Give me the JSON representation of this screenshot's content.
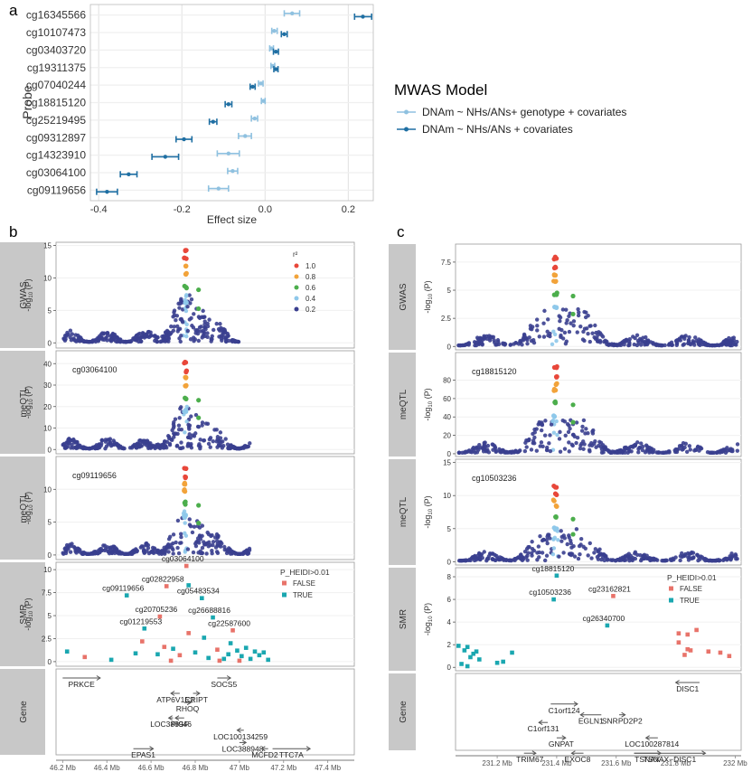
{
  "chart_data": [
    {
      "panel": "a",
      "type": "dot-errorbar",
      "ylabel": "Probe",
      "xlabel": "Effect size",
      "xlim": [
        -0.42,
        0.26
      ],
      "xticks": [
        "-0.4",
        "-0.2",
        "0.0",
        "0.2"
      ],
      "xtick_values": [
        -0.4,
        -0.2,
        0.0,
        0.2
      ],
      "probes": [
        "cg16345566",
        "cg10107473",
        "cg03403720",
        "cg19311375",
        "cg07040244",
        "cg18815120",
        "cg25219495",
        "cg09312897",
        "cg14323910",
        "cg03064100",
        "cg09119656"
      ],
      "legend_title": "MWAS Model",
      "series": [
        {
          "name": "DNAm ~ NHs/ANs+ genotype + covariates",
          "color": "#8fc1e0",
          "est": [
            0.065,
            0.022,
            0.015,
            0.018,
            -0.01,
            -0.004,
            -0.025,
            -0.048,
            -0.088,
            -0.078,
            -0.112
          ],
          "lo": [
            0.046,
            0.016,
            0.011,
            0.014,
            -0.016,
            -0.009,
            -0.033,
            -0.064,
            -0.115,
            -0.09,
            -0.136
          ],
          "hi": [
            0.083,
            0.029,
            0.02,
            0.023,
            -0.005,
            0.0,
            -0.018,
            -0.033,
            -0.062,
            -0.066,
            -0.088
          ]
        },
        {
          "name": "DNAm ~ NHs/ANs + covariates",
          "color": "#1f6fa3",
          "est": [
            0.235,
            0.046,
            0.026,
            0.026,
            -0.03,
            -0.088,
            -0.125,
            -0.195,
            -0.24,
            -0.328,
            -0.38
          ],
          "lo": [
            0.215,
            0.039,
            0.02,
            0.021,
            -0.036,
            -0.096,
            -0.134,
            -0.214,
            -0.272,
            -0.348,
            -0.405
          ],
          "hi": [
            0.256,
            0.053,
            0.032,
            0.031,
            -0.024,
            -0.08,
            -0.116,
            -0.176,
            -0.208,
            -0.308,
            -0.355
          ]
        }
      ]
    },
    {
      "panel": "b",
      "type": "regional-association",
      "x_ticks": [
        "46.2 Mb",
        "46.4 Mb",
        "46.6 Mb",
        "46.8 Mb",
        "47 Mb",
        "47.2 Mb",
        "47.4 Mb"
      ],
      "xlim": [
        46.17,
        47.52
      ],
      "tracks": [
        {
          "strip": "GWAS",
          "ylabel": "-log10 (P)",
          "yticks": [
            0,
            5,
            10,
            15
          ],
          "ylim": [
            -0.8,
            15.5
          ],
          "legend_title": "r²",
          "legend": [
            {
              "label": "1.0",
              "color": "#e8473a"
            },
            {
              "label": "0.8",
              "color": "#f2a33a"
            },
            {
              "label": "0.6",
              "color": "#4cae4c"
            },
            {
              "label": "0.4",
              "color": "#8ec8ea"
            },
            {
              "label": "0.2",
              "color": "#3a3f8f"
            }
          ],
          "peak_pos": 46.755,
          "peak": 14.6,
          "extent": [
            46.2,
            47.0
          ]
        },
        {
          "strip": "meQTL",
          "probe": "cg03064100",
          "ylabel": "-log10 (P)",
          "yticks": [
            0,
            10,
            20,
            30,
            40
          ],
          "ylim": [
            -2,
            46
          ],
          "peak_pos": 46.755,
          "peak": 41,
          "extent": [
            46.2,
            47.05
          ]
        },
        {
          "strip": "meQTL",
          "probe": "cg09119656",
          "ylabel": "-log10 (P)",
          "yticks": [
            0,
            5,
            10
          ],
          "ylim": [
            -0.7,
            15
          ],
          "peak_pos": 46.755,
          "peak": 13.5,
          "extent": [
            46.2,
            47.05
          ]
        },
        {
          "strip": "SMR",
          "ylabel": "-log10 (P)",
          "yticks": [
            0.0,
            2.5,
            5.0,
            7.5,
            10.0
          ],
          "ylim": [
            -0.5,
            10.8
          ],
          "legend_title": "P_HEIDI>0.01",
          "legend": [
            {
              "label": "FALSE",
              "color": "#e8736a"
            },
            {
              "label": "TRUE",
              "color": "#1aa7b0"
            }
          ],
          "points": [
            {
              "x": 46.76,
              "y": 10.4,
              "h": false,
              "label": "cg03064100"
            },
            {
              "x": 46.67,
              "y": 8.2,
              "h": false,
              "label": "cg02822958"
            },
            {
              "x": 46.77,
              "y": 8.3,
              "h": true
            },
            {
              "x": 46.49,
              "y": 7.2,
              "h": true,
              "label": "cg09119656"
            },
            {
              "x": 46.83,
              "y": 6.9,
              "h": true,
              "label": "cg05483534"
            },
            {
              "x": 46.64,
              "y": 4.9,
              "h": false,
              "label": "cg20705236"
            },
            {
              "x": 46.88,
              "y": 4.8,
              "h": true,
              "label": "cg26688816"
            },
            {
              "x": 46.57,
              "y": 3.6,
              "h": true,
              "label": "cg01219553"
            },
            {
              "x": 46.97,
              "y": 3.4,
              "h": false,
              "label": "cg22587600"
            },
            {
              "x": 46.77,
              "y": 3.1,
              "h": false
            },
            {
              "x": 46.84,
              "y": 2.6,
              "h": true
            },
            {
              "x": 46.56,
              "y": 2.2,
              "h": false
            },
            {
              "x": 46.66,
              "y": 1.6,
              "h": false
            },
            {
              "x": 46.22,
              "y": 1.1,
              "h": true
            },
            {
              "x": 46.3,
              "y": 0.5,
              "h": false
            },
            {
              "x": 46.42,
              "y": 0.2,
              "h": true
            },
            {
              "x": 46.53,
              "y": 0.9,
              "h": true
            },
            {
              "x": 46.63,
              "y": 0.8,
              "h": true
            },
            {
              "x": 46.7,
              "y": 1.4,
              "h": true
            },
            {
              "x": 46.73,
              "y": 0.7,
              "h": false
            },
            {
              "x": 46.8,
              "y": 1.0,
              "h": true
            },
            {
              "x": 46.86,
              "y": 0.4,
              "h": true
            },
            {
              "x": 46.9,
              "y": 1.3,
              "h": false
            },
            {
              "x": 46.93,
              "y": 0.3,
              "h": true
            },
            {
              "x": 46.95,
              "y": 0.8,
              "h": true
            },
            {
              "x": 46.96,
              "y": 2.0,
              "h": true
            },
            {
              "x": 46.99,
              "y": 1.2,
              "h": true
            },
            {
              "x": 47.01,
              "y": 0.6,
              "h": true
            },
            {
              "x": 47.03,
              "y": 1.5,
              "h": true
            },
            {
              "x": 47.05,
              "y": 0.3,
              "h": true
            },
            {
              "x": 47.07,
              "y": 1.1,
              "h": true
            },
            {
              "x": 47.09,
              "y": 0.7,
              "h": true
            },
            {
              "x": 47.11,
              "y": 1.0,
              "h": true
            },
            {
              "x": 47.13,
              "y": 0.2,
              "h": true
            },
            {
              "x": 47.0,
              "y": 0.1,
              "h": false
            },
            {
              "x": 46.91,
              "y": 0.1,
              "h": false
            },
            {
              "x": 46.69,
              "y": 0.1,
              "h": false
            }
          ]
        },
        {
          "strip": "Gene",
          "genes": [
            {
              "name": "PRKCE",
              "start": 46.2,
              "end": 46.37,
              "row": 0,
              "dir": ">"
            },
            {
              "name": "SOCS5",
              "start": 46.9,
              "end": 46.96,
              "row": 0,
              "dir": ">"
            },
            {
              "name": "ATP6V1E2",
              "start": 46.69,
              "end": 46.73,
              "row": 1,
              "dir": "<"
            },
            {
              "name": "CRIPT",
              "start": 46.79,
              "end": 46.82,
              "row": 1,
              "dir": ">"
            },
            {
              "name": "RHOQ",
              "start": 46.75,
              "end": 46.78,
              "row": 1.6,
              "dir": ">"
            },
            {
              "name": "LOC388946",
              "start": 46.68,
              "end": 46.7,
              "row": 2.6,
              "dir": "<"
            },
            {
              "name": "PIGF",
              "start": 46.71,
              "end": 46.75,
              "row": 2.6,
              "dir": "<"
            },
            {
              "name": "LOC100134259",
              "start": 46.99,
              "end": 47.02,
              "row": 3.4,
              "dir": "<"
            },
            {
              "name": "LOC388948",
              "start": 47.0,
              "end": 47.03,
              "row": 4.2,
              "dir": ">"
            },
            {
              "name": "EPAS1",
              "start": 46.52,
              "end": 46.61,
              "row": 4.6,
              "dir": ">"
            },
            {
              "name": "MCFD2",
              "start": 47.1,
              "end": 47.13,
              "row": 4.6,
              "dir": "<"
            },
            {
              "name": "TTC7A",
              "start": 47.15,
              "end": 47.32,
              "row": 4.6,
              "dir": ">"
            }
          ]
        }
      ]
    },
    {
      "panel": "c",
      "type": "regional-association",
      "x_ticks": [
        "231.2 Mb",
        "231.4 Mb",
        "231.6 Mb",
        "231.8 Mb",
        "232 Mb"
      ],
      "xlim": [
        231.06,
        232.02
      ],
      "tracks": [
        {
          "strip": "GWAS",
          "ylabel": "-log10 (P)",
          "yticks": [
            0.0,
            2.5,
            5.0,
            7.5
          ],
          "ylim": [
            -0.3,
            9.1
          ],
          "peak_pos": 231.395,
          "peak": 8.0
        },
        {
          "strip": "meQTL",
          "probe": "cg18815120",
          "ylabel": "-log10 (P)",
          "yticks": [
            0,
            20,
            40,
            60,
            80
          ],
          "ylim": [
            -3,
            110
          ],
          "peak_pos": 231.395,
          "peak": 95
        },
        {
          "strip": "meQTL",
          "probe": "cg10503236",
          "ylabel": "-log10 (P)",
          "yticks": [
            0,
            5,
            10,
            15
          ],
          "ylim": [
            -0.5,
            15.5
          ],
          "peak_pos": 231.395,
          "peak": 11.5
        },
        {
          "strip": "SMR",
          "ylabel": "-log10 (P)",
          "yticks": [
            0,
            2,
            4,
            6,
            8
          ],
          "ylim": [
            -0.3,
            8.8
          ],
          "legend_title": "P_HEIDI>0.01",
          "legend": [
            {
              "label": "FALSE",
              "color": "#e8736a"
            },
            {
              "label": "TRUE",
              "color": "#1aa7b0"
            }
          ],
          "points": [
            {
              "x": 231.4,
              "y": 8.1,
              "h": true,
              "label": "cg18815120"
            },
            {
              "x": 231.39,
              "y": 6.0,
              "h": true,
              "label": "cg10503236"
            },
            {
              "x": 231.59,
              "y": 6.3,
              "h": false,
              "label": "cg23162821"
            },
            {
              "x": 231.57,
              "y": 3.7,
              "h": true,
              "label": "cg26340700"
            },
            {
              "x": 231.81,
              "y": 3.0,
              "h": false
            },
            {
              "x": 231.84,
              "y": 2.9,
              "h": false
            },
            {
              "x": 231.87,
              "y": 3.3,
              "h": false
            },
            {
              "x": 231.81,
              "y": 2.2,
              "h": false
            },
            {
              "x": 231.84,
              "y": 1.6,
              "h": false
            },
            {
              "x": 231.83,
              "y": 1.1,
              "h": false
            },
            {
              "x": 231.85,
              "y": 1.5,
              "h": false
            },
            {
              "x": 231.91,
              "y": 1.4,
              "h": false
            },
            {
              "x": 231.95,
              "y": 1.3,
              "h": false
            },
            {
              "x": 231.98,
              "y": 1.0,
              "h": false
            },
            {
              "x": 231.07,
              "y": 1.9,
              "h": true
            },
            {
              "x": 231.08,
              "y": 0.3,
              "h": true
            },
            {
              "x": 231.09,
              "y": 1.5,
              "h": true
            },
            {
              "x": 231.1,
              "y": 1.8,
              "h": true
            },
            {
              "x": 231.11,
              "y": 0.9,
              "h": true
            },
            {
              "x": 231.12,
              "y": 1.2,
              "h": true
            },
            {
              "x": 231.13,
              "y": 1.4,
              "h": true
            },
            {
              "x": 231.14,
              "y": 0.7,
              "h": true
            },
            {
              "x": 231.2,
              "y": 0.4,
              "h": true
            },
            {
              "x": 231.22,
              "y": 0.5,
              "h": true
            },
            {
              "x": 231.25,
              "y": 1.3,
              "h": true
            },
            {
              "x": 231.1,
              "y": 0.1,
              "h": true
            }
          ]
        },
        {
          "strip": "Gene",
          "genes": [
            {
              "name": "DISC1",
              "start": 231.8,
              "end": 231.88,
              "row": 0,
              "dir": "<"
            },
            {
              "name": "C1orf124",
              "start": 231.38,
              "end": 231.47,
              "row": 1.4,
              "dir": ">"
            },
            {
              "name": "EGLN1",
              "start": 231.48,
              "end": 231.55,
              "row": 2.1,
              "dir": "<"
            },
            {
              "name": "SNRPD2P2",
              "start": 231.61,
              "end": 231.63,
              "row": 2.1,
              "dir": ">"
            },
            {
              "name": "C1orf131",
              "start": 231.34,
              "end": 231.37,
              "row": 2.6,
              "dir": "<"
            },
            {
              "name": "GNPAT",
              "start": 231.4,
              "end": 231.43,
              "row": 3.6,
              "dir": ">"
            },
            {
              "name": "LOC100287814",
              "start": 231.7,
              "end": 231.74,
              "row": 3.6,
              "dir": "<"
            },
            {
              "name": "TRIM67",
              "start": 231.29,
              "end": 231.33,
              "row": 4.6,
              "dir": ">"
            },
            {
              "name": "EXOC8",
              "start": 231.45,
              "end": 231.49,
              "row": 4.6,
              "dir": "<"
            },
            {
              "name": "TSNAX",
              "start": 231.66,
              "end": 231.75,
              "row": 4.6,
              "dir": ">"
            },
            {
              "name": "TSNAX−DISC1",
              "start": 231.66,
              "end": 231.9,
              "row": 4.6,
              "dir": ">"
            }
          ]
        }
      ]
    }
  ],
  "labels": {
    "a": "a",
    "b": "b",
    "c": "c"
  },
  "colors": {
    "strip_bg": "#c8c8c8",
    "panel_bg": "#ffffff",
    "grid": "#ececec",
    "navy": "#2e3589"
  }
}
